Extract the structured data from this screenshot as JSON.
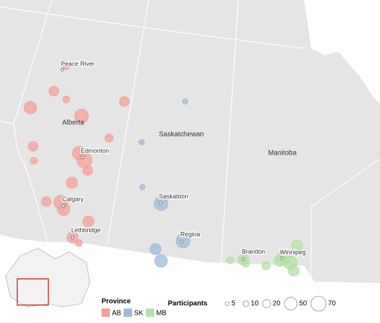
{
  "map": {
    "regions": [
      "Alberta",
      "Saskatchewan",
      "Manitoba"
    ],
    "cities": [
      "Peace River",
      "Edmonton",
      "Calgary",
      "Lethbridge",
      "Saskatoon",
      "Regina",
      "Brandon",
      "Winnipeg"
    ]
  },
  "legend": {
    "province_title": "Province",
    "provinces": [
      {
        "name": "AB",
        "color": "#f4a09a"
      },
      {
        "name": "SK",
        "color": "#9fbbd9"
      },
      {
        "name": "MB",
        "color": "#b3e0a5"
      }
    ],
    "size_title": "Participants",
    "sizes": [
      5,
      10,
      20,
      50,
      70
    ]
  },
  "sites": [
    [
      21,
      29,
      15,
      48,
      59,
      29,
      21,
      29,
      15,
      59,
      72,
      29,
      38,
      29,
      59,
      48,
      38,
      38,
      15
    ],
    [
      9,
      9,
      9,
      59,
      59,
      38,
      48
    ],
    [
      15,
      38,
      15,
      59,
      38,
      59,
      38,
      21,
      38
    ]
  ]
}
